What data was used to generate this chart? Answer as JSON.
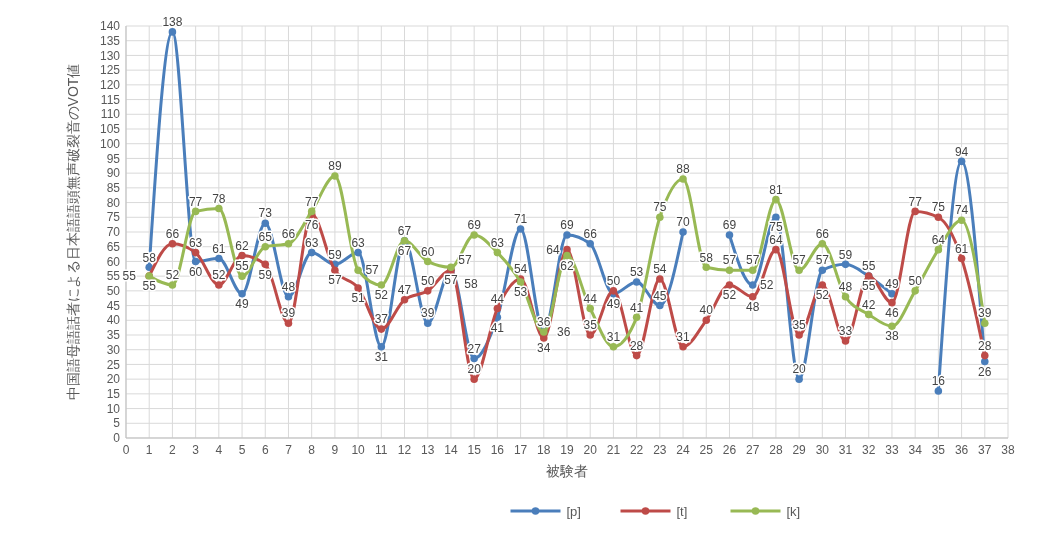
{
  "chart_data": {
    "type": "line",
    "xlabel": "被験者",
    "ylabel": "中国語母語話者による日本語語頭無声破裂音のVOT値",
    "x": [
      1,
      2,
      3,
      4,
      5,
      6,
      7,
      8,
      9,
      10,
      11,
      12,
      13,
      14,
      15,
      16,
      17,
      18,
      19,
      20,
      21,
      22,
      23,
      24,
      25,
      26,
      27,
      28,
      29,
      30,
      31,
      32,
      33,
      34,
      35,
      36,
      37
    ],
    "xlim": [
      0,
      38
    ],
    "xticks": [
      0,
      1,
      2,
      3,
      4,
      5,
      6,
      7,
      8,
      9,
      10,
      11,
      12,
      13,
      14,
      15,
      16,
      17,
      18,
      19,
      20,
      21,
      22,
      23,
      24,
      25,
      26,
      27,
      28,
      29,
      30,
      31,
      32,
      33,
      34,
      35,
      36,
      37,
      38
    ],
    "ylim": [
      0,
      140
    ],
    "yticks": [
      0,
      5,
      10,
      15,
      20,
      25,
      30,
      35,
      40,
      45,
      50,
      55,
      60,
      65,
      70,
      75,
      80,
      85,
      90,
      95,
      100,
      105,
      110,
      115,
      120,
      125,
      130,
      135,
      140
    ],
    "series": [
      {
        "name": "[p]",
        "color": "#4a7ebb",
        "values": [
          58,
          138,
          60,
          61,
          49,
          73,
          48,
          63,
          59,
          63,
          31,
          67,
          39,
          57,
          27,
          41,
          71,
          36,
          69,
          66,
          49,
          53,
          45,
          70,
          null,
          69,
          52,
          75,
          20,
          57,
          59,
          55,
          49,
          null,
          16,
          94,
          26
        ]
      },
      {
        "name": "[t]",
        "color": "#be4b48",
        "values": [
          55,
          66,
          63,
          52,
          62,
          59,
          39,
          76,
          57,
          51,
          37,
          47,
          50,
          57,
          20,
          44,
          54,
          34,
          64,
          35,
          50,
          28,
          54,
          31,
          40,
          52,
          48,
          64,
          35,
          52,
          33,
          55,
          46,
          77,
          75,
          61,
          28
        ]
      },
      {
        "name": "[k]",
        "color": "#98b954",
        "values": [
          55,
          52,
          77,
          78,
          55,
          65,
          66,
          77,
          89,
          57,
          52,
          67,
          60,
          58,
          69,
          63,
          53,
          36,
          62,
          44,
          31,
          41,
          75,
          88,
          58,
          57,
          57,
          81,
          57,
          66,
          48,
          42,
          38,
          50,
          64,
          74,
          39
        ]
      }
    ],
    "data_labels": true,
    "grid": true,
    "legend": "bottom",
    "marker": "circle",
    "line_style": "solid"
  }
}
